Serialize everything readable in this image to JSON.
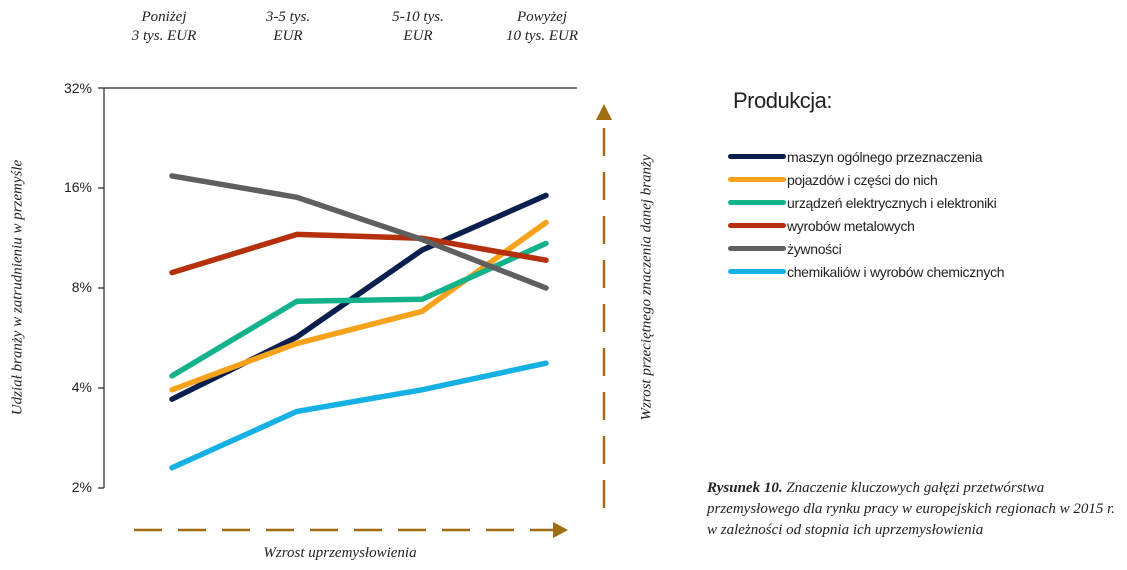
{
  "chart_data": {
    "type": "line",
    "categories": [
      "Poniżej\n3 tys. EUR",
      "3-5 tys.\nEUR",
      "5-10 tys.\nEUR",
      "Powyżej\n10 tys. EUR"
    ],
    "y_scale": "log2",
    "ylim": [
      "2%",
      "32%"
    ],
    "y_ticks": [
      "32%",
      "16%",
      "8%",
      "4%",
      "2%"
    ],
    "ylabel": "Udział branży w zatrudnieniu w przemyśle",
    "xlabel": "Wzrost uprzemysłowienia",
    "right_label": "Wzrost przeciętnego znaczenia danej branży",
    "legend_title": "Produkcja:",
    "legend_position": "right",
    "series": [
      {
        "name": "maszyn ogólnego przeznaczenia",
        "color": "#0b1f4f",
        "values": [
          3.7,
          5.7,
          10.4,
          15.2
        ]
      },
      {
        "name": "pojazdów i części do nich",
        "color": "#f7a21b",
        "values": [
          3.95,
          5.45,
          6.8,
          12.6
        ]
      },
      {
        "name": "urządzeń elektrycznych i elektroniki",
        "color": "#13b28a",
        "values": [
          4.35,
          7.3,
          7.4,
          10.9
        ]
      },
      {
        "name": "wyrobów metalowych",
        "color": "#b5300c",
        "values": [
          8.9,
          11.6,
          11.3,
          9.7
        ]
      },
      {
        "name": "żywności",
        "color": "#5f5f5f",
        "values": [
          17.4,
          15.0,
          11.2,
          8.0
        ]
      },
      {
        "name": "chemikaliów i wyrobów chemicznych",
        "color": "#16b1e4",
        "values": [
          2.3,
          3.4,
          3.95,
          4.75
        ]
      }
    ],
    "arrow_color": "#a06d12"
  },
  "caption": {
    "bold": "Rysunek 10.",
    "text": " Znaczenie kluczowych gałęzi przetwórstwa przemysłowego dla rynku pracy w europejskich regionach w 2015 r. w zależności od stopnia ich uprzemysłowienia"
  }
}
